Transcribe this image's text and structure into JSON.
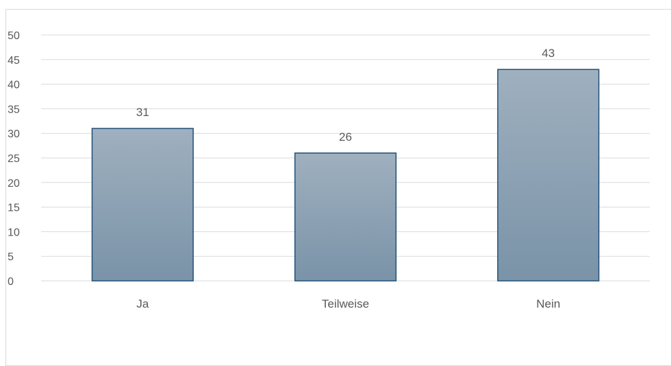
{
  "chart_data": {
    "type": "bar",
    "categories": [
      "Ja",
      "Teilweise",
      "Nein"
    ],
    "values": [
      31,
      26,
      43
    ],
    "data_labels": [
      "31",
      "26",
      "43"
    ],
    "ylim": [
      0,
      50
    ],
    "yticks": [
      "0",
      "5",
      "10",
      "15",
      "20",
      "25",
      "30",
      "35",
      "40",
      "45",
      "50"
    ],
    "grid": true,
    "colors": {
      "bar_top": "#9fb0bf",
      "bar_bottom": "#7a93a8",
      "bar_border": "#1f4e79",
      "grid": "#d9d9d9"
    }
  }
}
